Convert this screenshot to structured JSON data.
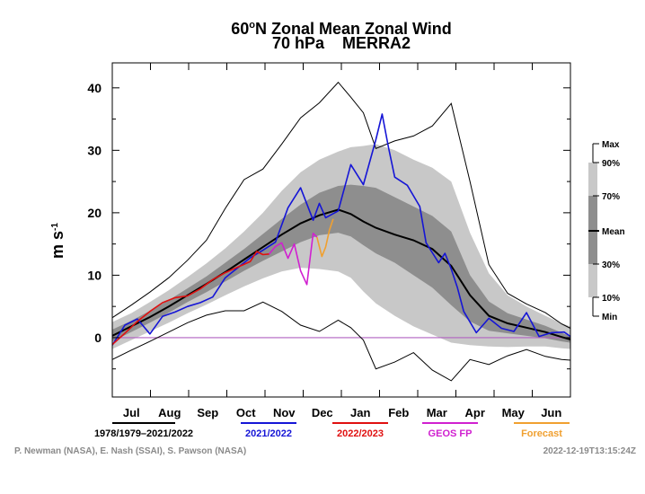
{
  "chart_data": {
    "type": "line",
    "title_line1_prefix": "60",
    "title_line1_degree": "o",
    "title_line1_rest": "N Zonal Mean Zonal Wind",
    "title_line2": "70 hPa    MERRA2",
    "ylabel_main": "m s",
    "ylabel_exp": "-1",
    "ylim": [
      -9.5,
      44
    ],
    "y_ticks": [
      0,
      10,
      20,
      30,
      40
    ],
    "y_tick_labels": [
      "0",
      "10",
      "20",
      "30",
      "40"
    ],
    "xlim": [
      0,
      365
    ],
    "x_month_labels": [
      "Jul",
      "Aug",
      "Sep",
      "Oct",
      "Nov",
      "Dec",
      "Jan",
      "Feb",
      "Mar",
      "Apr",
      "May",
      "Jun"
    ],
    "zero_line_color": "#b060c0",
    "climatology": {
      "days": [
        0,
        15,
        30,
        45,
        60,
        75,
        90,
        105,
        120,
        135,
        150,
        165,
        180,
        190,
        200,
        210,
        225,
        240,
        255,
        270,
        285,
        300,
        315,
        330,
        345,
        358,
        365
      ],
      "mean": [
        0.3,
        1.8,
        3.3,
        5.0,
        6.8,
        8.6,
        10.5,
        12.5,
        14.5,
        16.5,
        18.3,
        19.6,
        20.5,
        19.8,
        18.6,
        17.6,
        16.5,
        15.6,
        14.2,
        11.5,
        6.8,
        3.5,
        2.3,
        1.6,
        0.9,
        0.1,
        -0.3
      ],
      "p30": [
        -0.6,
        0.9,
        2.4,
        4.0,
        5.7,
        7.3,
        9.0,
        10.7,
        12.3,
        13.8,
        15.3,
        16.4,
        16.8,
        16.2,
        14.8,
        13.5,
        12.0,
        10.0,
        8.0,
        5.2,
        2.6,
        1.1,
        0.7,
        0.3,
        -0.1,
        -0.6,
        -0.8
      ],
      "p70": [
        1.3,
        2.7,
        4.3,
        6.0,
        7.9,
        9.8,
        12.0,
        14.2,
        16.6,
        19.0,
        21.3,
        23.2,
        24.3,
        24.5,
        24.3,
        24.0,
        22.5,
        21.0,
        19.5,
        17.0,
        10.0,
        5.8,
        3.9,
        2.9,
        1.9,
        0.8,
        0.2
      ],
      "p10": [
        -1.8,
        -0.4,
        1.0,
        2.4,
        3.9,
        5.3,
        6.8,
        8.2,
        9.5,
        10.6,
        11.2,
        11.0,
        10.6,
        9.6,
        7.4,
        5.5,
        3.5,
        1.8,
        0.5,
        -0.8,
        -1.2,
        -1.4,
        -1.5,
        -1.4,
        -1.4,
        -1.7,
        -1.8
      ],
      "p90": [
        2.5,
        3.9,
        5.7,
        7.6,
        9.7,
        11.9,
        14.3,
        17.0,
        20.0,
        23.5,
        26.5,
        28.5,
        29.8,
        30.5,
        30.7,
        31.0,
        30.0,
        28.5,
        27.2,
        25.0,
        16.8,
        10.3,
        6.8,
        5.0,
        3.5,
        2.3,
        1.8
      ],
      "min": [
        -3.5,
        -2.0,
        -0.6,
        0.9,
        2.4,
        3.6,
        4.3,
        4.3,
        5.7,
        4.2,
        2.0,
        1.0,
        2.8,
        1.6,
        -0.4,
        -5.0,
        -3.9,
        -2.4,
        -5.2,
        -6.9,
        -3.5,
        -4.3,
        -2.9,
        -1.9,
        -3.0,
        -3.5,
        -3.6
      ],
      "max": [
        3.2,
        5.2,
        7.3,
        9.6,
        12.4,
        15.6,
        20.7,
        25.3,
        27.0,
        31.0,
        35.2,
        37.6,
        40.9,
        38.5,
        36.0,
        30.3,
        31.5,
        32.3,
        33.9,
        37.5,
        25.0,
        11.7,
        7.1,
        5.4,
        4.0,
        2.2,
        1.5
      ]
    },
    "series": [
      {
        "name": "2021/2022",
        "color": "#1515d6",
        "x": [
          0,
          10,
          20,
          30,
          40,
          50,
          60,
          70,
          80,
          90,
          100,
          110,
          120,
          130,
          140,
          150,
          160,
          165,
          170,
          180,
          190,
          200,
          210,
          215,
          220,
          225,
          235,
          245,
          250,
          260,
          265,
          270,
          275,
          280,
          290,
          300,
          310,
          320,
          330,
          340,
          350,
          360,
          365
        ],
        "y": [
          -1.2,
          2.0,
          3.0,
          0.6,
          3.4,
          4.1,
          5.0,
          5.6,
          6.5,
          9.6,
          11.2,
          12.8,
          14.0,
          15.3,
          20.8,
          24.0,
          18.8,
          21.5,
          19.2,
          20.3,
          27.7,
          24.5,
          31.7,
          35.8,
          30.5,
          25.7,
          24.4,
          21.0,
          15.2,
          12.0,
          13.5,
          11.0,
          8.0,
          4.2,
          0.8,
          3.1,
          1.5,
          1.0,
          4.0,
          0.2,
          0.8,
          0.9,
          0.2
        ]
      },
      {
        "name": "2022/2023",
        "color": "#e01010",
        "x": [
          0,
          10,
          20,
          30,
          40,
          50,
          60,
          70,
          80,
          90,
          100,
          110,
          115,
          120,
          125
        ],
        "y": [
          -1.1,
          0.7,
          2.6,
          4.2,
          5.6,
          6.4,
          6.7,
          7.8,
          9.3,
          10.4,
          11.3,
          12.2,
          13.8,
          13.3,
          13.4
        ]
      },
      {
        "name": "GEOS FP",
        "color": "#d020d0",
        "x": [
          125,
          130,
          135,
          140,
          145,
          150,
          155,
          160,
          163
        ],
        "y": [
          13.4,
          14.6,
          15.2,
          12.7,
          15.0,
          10.7,
          8.5,
          16.7,
          16.1
        ]
      },
      {
        "name": "Forecast",
        "color": "#f0a030",
        "x": [
          163,
          167,
          170,
          173,
          176
        ],
        "y": [
          16.1,
          13.0,
          14.5,
          17.2,
          19.0
        ]
      }
    ],
    "legend": [
      {
        "label": "1978/1979–2021/2022",
        "color": "#000000"
      },
      {
        "label": "2021/2022",
        "color": "#1515d6"
      },
      {
        "label": "2022/2023",
        "color": "#e01010"
      },
      {
        "label": "GEOS FP",
        "color": "#d020d0"
      },
      {
        "label": "Forecast",
        "color": "#f0a030"
      }
    ],
    "shade_key": [
      {
        "label": "Max"
      },
      {
        "label": "90%"
      },
      {
        "label": "70%"
      },
      {
        "label": "Mean"
      },
      {
        "label": "30%"
      },
      {
        "label": "10%"
      },
      {
        "label": "Min"
      }
    ],
    "credits_left": "P. Newman (NASA), E. Nash (SSAI), S. Pawson (NASA)",
    "credits_right": "2022-12-19T13:15:24Z"
  }
}
